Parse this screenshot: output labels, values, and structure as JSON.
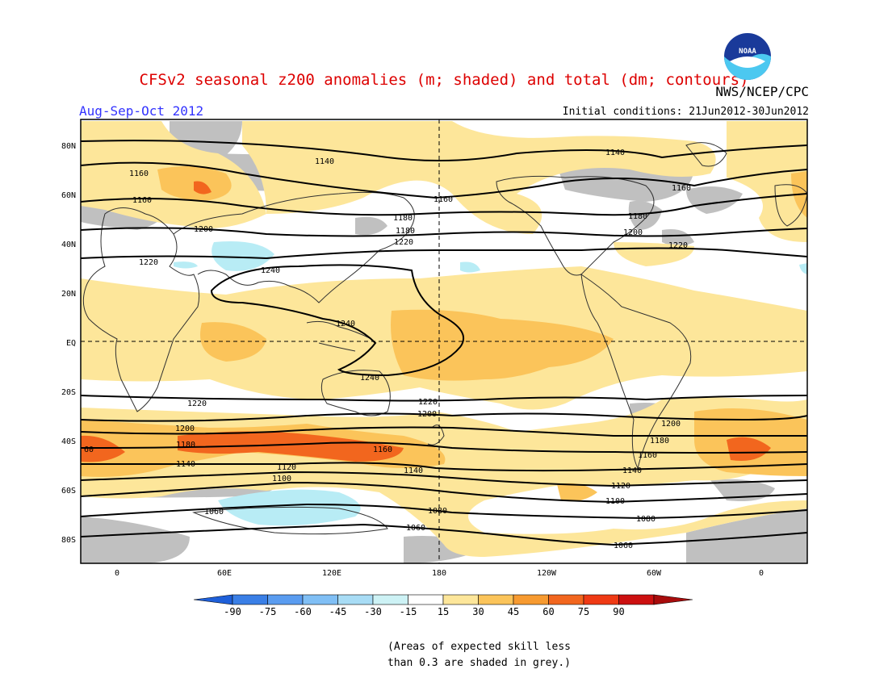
{
  "header": {
    "title": "CFSv2 seasonal z200 anomalies (m; shaded) and total (dm; contours)",
    "title_color": "#dd0000",
    "season": "Aug-Sep-Oct 2012",
    "season_color": "#3333ff",
    "initial_conditions": "Initial conditions: 21Jun2012-30Jun2012",
    "agency": "NWS/NCEP/CPC",
    "logo_text": "NOAA"
  },
  "map": {
    "lat_labels": [
      "80N",
      "60N",
      "40N",
      "20N",
      "EQ",
      "20S",
      "40S",
      "60S",
      "80S"
    ],
    "lon_labels": [
      "0",
      "60E",
      "120E",
      "180",
      "120W",
      "60W",
      "0"
    ],
    "contour_labels": [
      "1140",
      "1140",
      "1160",
      "1160",
      "1160",
      "1160",
      "1180",
      "1180",
      "1180",
      "1200",
      "1200",
      "1220",
      "1220",
      "1220",
      "1240",
      "1240",
      "1240",
      "1220",
      "1220",
      "1200",
      "1200",
      "1200",
      "1180",
      "1180",
      "1160",
      "1160",
      "1140",
      "1140",
      "1140",
      "1120",
      "1120",
      "1100",
      "1100",
      "1080",
      "1080",
      "1060",
      "1060",
      "1060",
      "60"
    ]
  },
  "colorbar": {
    "ticks": [
      "-90",
      "-75",
      "-60",
      "-45",
      "-30",
      "-15",
      "15",
      "30",
      "45",
      "60",
      "75",
      "90"
    ],
    "colors": [
      "#1e5fd9",
      "#3a7fe6",
      "#5a9cf0",
      "#80bff5",
      "#a8dcf5",
      "#cdf2f5",
      "#ffffff",
      "#fde69a",
      "#fbc45a",
      "#f79a30",
      "#f2661e",
      "#ef3a14",
      "#cc1010",
      "#a80c0c"
    ]
  },
  "note": {
    "line1": "(Areas of expected skill less",
    "line2": "than 0.3 are shaded in grey.)"
  },
  "colors": {
    "grey_skill": "#c0c0c0",
    "pos15": "#fde69a",
    "pos30": "#fbc45a",
    "pos45": "#f2661e",
    "neg15": "#b8ecf5"
  }
}
